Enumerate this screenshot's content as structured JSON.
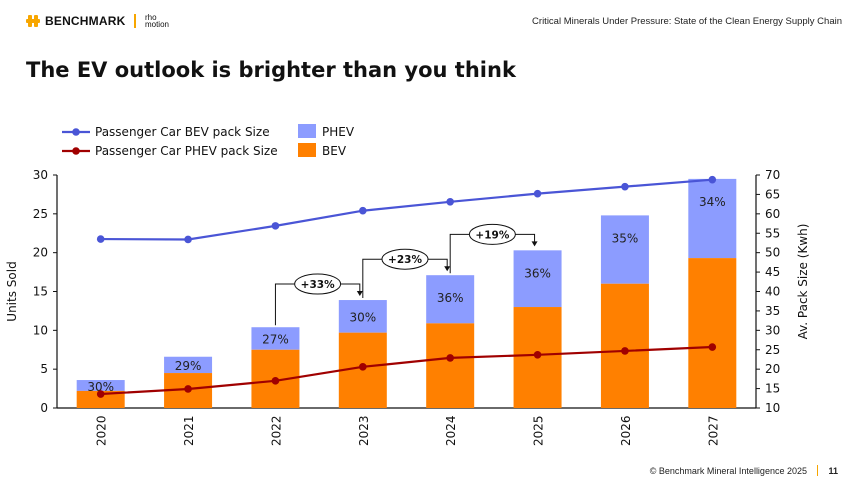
{
  "header": {
    "logo_brand": "BENCHMARK",
    "logo_partner_line1": "rho",
    "logo_partner_line2": "motion",
    "document_title": "Critical Minerals Under Pressure: State of the Clean Energy Supply Chain"
  },
  "slide": {
    "title": "The EV outlook is brighter than you think"
  },
  "footer": {
    "copyright": "© Benchmark Mineral Intelligence 2025",
    "page_number": "11"
  },
  "colors": {
    "bev": "#ff8000",
    "phev": "#8c9cff",
    "bev_pack_line": "#4a55d6",
    "phev_pack_line": "#a00000",
    "brand": "#f7a600"
  },
  "chart_data": {
    "type": "bar",
    "stacked": true,
    "title": "",
    "categories": [
      "2020",
      "2021",
      "2022",
      "2023",
      "2024",
      "2025",
      "2026",
      "2027"
    ],
    "series": [
      {
        "name": "BEV",
        "axis": "left",
        "type": "bar",
        "values": [
          2.2,
          4.5,
          7.5,
          9.7,
          10.9,
          13.0,
          16.0,
          19.3
        ]
      },
      {
        "name": "PHEV",
        "axis": "left",
        "type": "bar",
        "values": [
          1.4,
          2.1,
          2.9,
          4.2,
          6.2,
          7.3,
          8.8,
          10.2
        ]
      },
      {
        "name": "Passenger Car BEV pack Size",
        "axis": "right",
        "type": "line",
        "values": [
          53.5,
          53.4,
          56.9,
          60.8,
          63.1,
          65.2,
          67.0,
          68.8
        ]
      },
      {
        "name": "Passenger Car PHEV pack Size",
        "axis": "right",
        "type": "line",
        "values": [
          13.6,
          14.9,
          17.0,
          20.6,
          22.9,
          23.7,
          24.7,
          25.7
        ]
      }
    ],
    "bar_labels": [
      "30%",
      "29%",
      "27%",
      "30%",
      "36%",
      "36%",
      "35%",
      "34%"
    ],
    "growth_annotations": [
      {
        "from": "2022",
        "to": "2023",
        "label": "+33%"
      },
      {
        "from": "2023",
        "to": "2024",
        "label": "+23%"
      },
      {
        "from": "2024",
        "to": "2025",
        "label": "+19%"
      }
    ],
    "xlabel": "",
    "ylabel": "Units Sold",
    "y2label": "Av. Pack Size (Kwh)",
    "ylim": [
      0,
      30
    ],
    "y2lim": [
      10,
      70
    ],
    "yticks": [
      "0",
      "5",
      "10",
      "15",
      "20",
      "25",
      "30"
    ],
    "y2ticks": [
      "10",
      "15",
      "20",
      "25",
      "30",
      "35",
      "40",
      "45",
      "50",
      "55",
      "60",
      "65",
      "70"
    ],
    "legend": {
      "placement": "top-left",
      "items": [
        {
          "label": "Passenger Car BEV pack Size",
          "kind": "line"
        },
        {
          "label": "Passenger Car PHEV pack Size",
          "kind": "line"
        },
        {
          "label": "PHEV",
          "kind": "box"
        },
        {
          "label": "BEV",
          "kind": "box"
        }
      ]
    },
    "grid": false
  }
}
